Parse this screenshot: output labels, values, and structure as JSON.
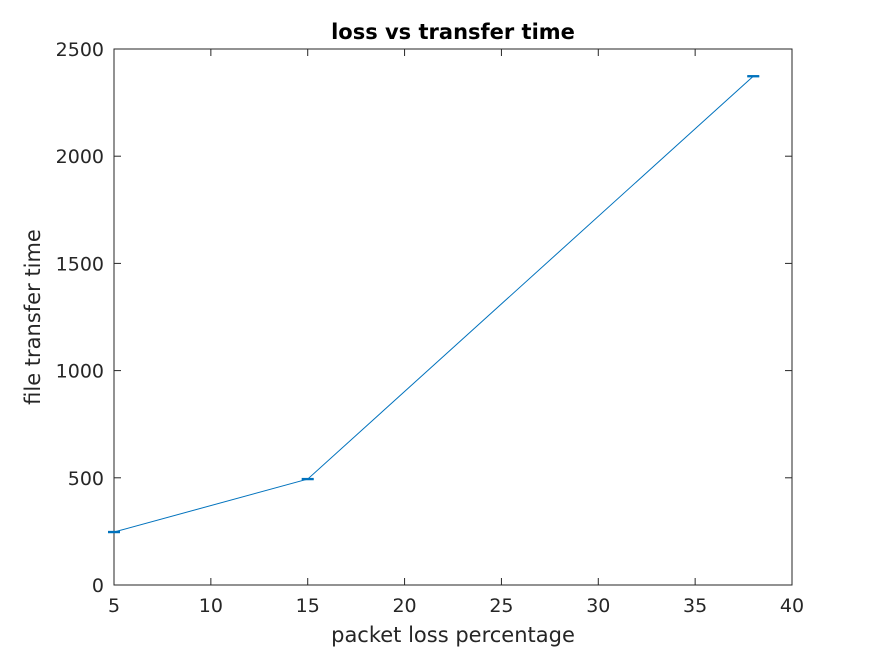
{
  "chart_data": {
    "type": "line",
    "title": "loss vs transfer time",
    "xlabel": "packet loss percentage",
    "ylabel": "file transfer time",
    "xlim": [
      5,
      40
    ],
    "ylim": [
      0,
      2500
    ],
    "xticks": [
      5,
      10,
      15,
      20,
      25,
      30,
      35,
      40
    ],
    "yticks": [
      0,
      500,
      1000,
      1500,
      2000,
      2500
    ],
    "grid": false,
    "error_bars": true,
    "series": [
      {
        "color": "#0072BD",
        "x": [
          5,
          15,
          38
        ],
        "y": [
          247,
          494,
          2373
        ],
        "err": [
          2,
          2,
          2
        ]
      }
    ]
  }
}
